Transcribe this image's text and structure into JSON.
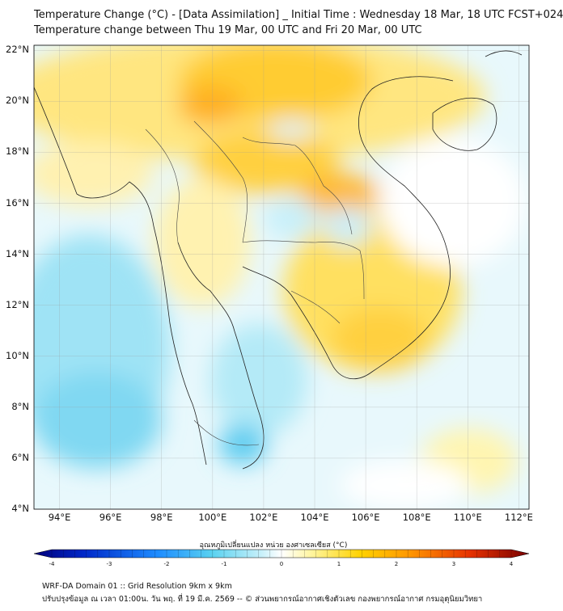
{
  "title": {
    "line1": "Temperature Change (°C) - [Data Assimilation] _ Initial Time : Wednesday 18 Mar, 18 UTC FCST+024",
    "line2": "Temperature change between Thu 19 Mar, 00 UTC and Fri 20 Mar, 00 UTC"
  },
  "axes": {
    "lat_labels": [
      "22°N",
      "20°N",
      "18°N",
      "16°N",
      "14°N",
      "12°N",
      "10°N",
      "8°N",
      "6°N",
      "4°N"
    ],
    "lon_labels": [
      "94°E",
      "96°E",
      "98°E",
      "100°E",
      "102°E",
      "104°E",
      "106°E",
      "108°E",
      "110°E",
      "112°E"
    ],
    "lat_range": [
      4,
      22.2
    ],
    "lon_range": [
      93,
      112.4
    ],
    "grid": true
  },
  "colorbar": {
    "label": "อุณหภูมิเปลี่ยนแปลง หน่วย องศาเซลเซียส (°C)",
    "ticks": [
      "-4",
      "-3",
      "-2",
      "-1",
      "0",
      "1",
      "2",
      "3",
      "4"
    ],
    "min": -4,
    "max": 4,
    "colors": [
      "#00007a",
      "#0028c8",
      "#1e8cff",
      "#5ad2f0",
      "#c8f0fa",
      "#ffffff",
      "#fff5a0",
      "#ffd200",
      "#ff9600",
      "#e63200",
      "#780000"
    ]
  },
  "footer": {
    "line1": "WRF-DA Domain 01 :: Grid Resolution 9km x 9km",
    "line2": "ปรับปรุงข้อมูล ณ เวลา 01:00น. วัน พฤ. ที่ 19 มี.ค. 2569 -- © ส่วนพยากรณ์อากาศเชิงตัวเลข กองพยากรณ์อากาศ กรมอุตุนิยมวิทยา"
  }
}
